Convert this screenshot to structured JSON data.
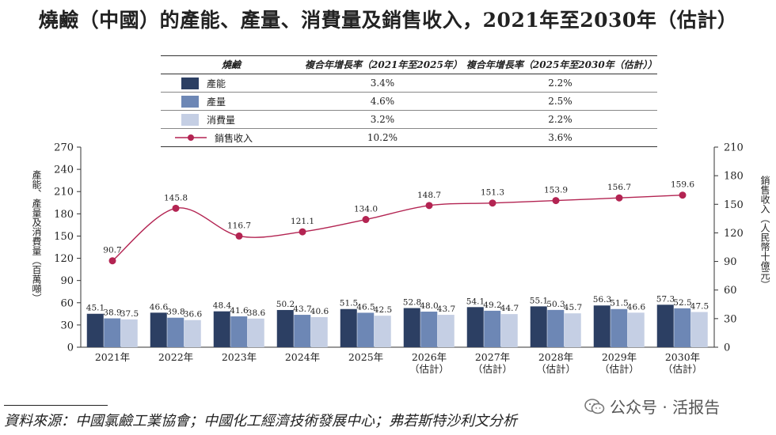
{
  "title": "燒鹼（中國）的產能、產量、消費量及銷售收入，2021年至2030年（估計）",
  "table": {
    "headers": [
      "燒鹼",
      "複合年增長率（2021年至2025年）",
      "複合年增長率（2025年至2030年（估計））"
    ],
    "rows": [
      {
        "label": "產能",
        "cagr1": "3.4%",
        "cagr2": "2.2%"
      },
      {
        "label": "產量",
        "cagr1": "4.6%",
        "cagr2": "2.5%"
      },
      {
        "label": "消費量",
        "cagr1": "3.2%",
        "cagr2": "2.2%"
      },
      {
        "label": "銷售收入",
        "cagr1": "10.2%",
        "cagr2": "3.6%"
      }
    ]
  },
  "colors": {
    "capacity": "#2c3f63",
    "production": "#6d87b5",
    "consumption": "#c5cfe4",
    "revenue": "#b32452"
  },
  "chart_data": {
    "type": "bar",
    "categories": [
      "2021年",
      "2022年",
      "2023年",
      "2024年",
      "2025年",
      "2026年\n（估計）",
      "2027年\n（估計）",
      "2028年\n（估計）",
      "2029年\n（估計）",
      "2030年\n（估計）"
    ],
    "series": [
      {
        "name": "產能",
        "type": "bar",
        "axis": "left",
        "values": [
          45.1,
          46.6,
          48.4,
          50.2,
          51.5,
          52.8,
          54.1,
          55.1,
          56.3,
          57.3
        ]
      },
      {
        "name": "產量",
        "type": "bar",
        "axis": "left",
        "values": [
          38.9,
          39.8,
          41.6,
          43.7,
          46.5,
          48.0,
          49.2,
          50.3,
          51.5,
          52.5
        ]
      },
      {
        "name": "消費量",
        "type": "bar",
        "axis": "left",
        "values": [
          37.5,
          36.6,
          38.6,
          40.6,
          42.5,
          43.7,
          44.7,
          45.7,
          46.6,
          47.5
        ]
      },
      {
        "name": "銷售收入",
        "type": "line",
        "axis": "right",
        "values": [
          90.7,
          145.8,
          116.7,
          121.1,
          134.0,
          148.7,
          151.3,
          153.9,
          156.7,
          159.6
        ]
      }
    ],
    "ylabel": "產能、產量及消費量（百萬噸）",
    "y2label": "銷售收入（人民幣十億元）",
    "ylim": [
      0,
      270
    ],
    "yticks": [
      0,
      30,
      60,
      90,
      120,
      150,
      180,
      210,
      240,
      270
    ],
    "y2lim": [
      0,
      210
    ],
    "y2ticks": [
      0,
      30,
      60,
      90,
      120,
      150,
      180,
      210
    ],
    "grid": false
  },
  "source": "資料來源：中國氯鹼工業協會；中國化工經濟技術發展中心；弗若斯特沙利文分析",
  "watermark": "公众号 · 活报告"
}
